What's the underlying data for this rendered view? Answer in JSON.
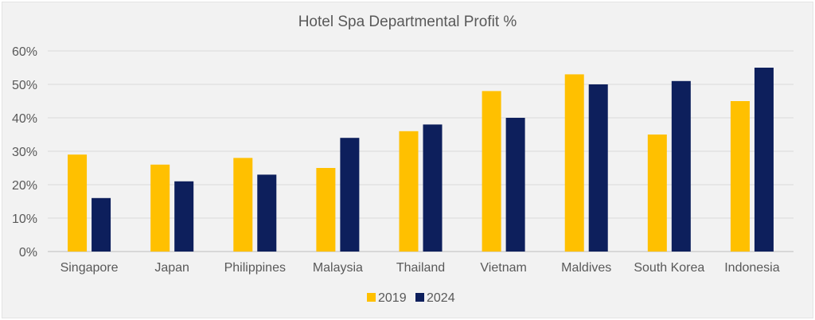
{
  "chart_data": {
    "type": "bar",
    "title": "Hotel Spa Departmental Profit %",
    "xlabel": "",
    "ylabel": "",
    "categories": [
      "Singapore",
      "Japan",
      "Philippines",
      "Malaysia",
      "Thailand",
      "Vietnam",
      "Maldives",
      "South Korea",
      "Indonesia"
    ],
    "series": [
      {
        "name": "2019",
        "color": "#ffc000",
        "values": [
          29,
          26,
          28,
          25,
          36,
          48,
          53,
          35,
          45
        ]
      },
      {
        "name": "2024",
        "color": "#0d1f5c",
        "values": [
          16,
          21,
          23,
          34,
          38,
          40,
          50,
          51,
          55
        ]
      }
    ],
    "ylim": [
      0,
      60
    ],
    "yticks": [
      "0%",
      "10%",
      "20%",
      "30%",
      "40%",
      "50%",
      "60%"
    ],
    "grid": true,
    "legend_position": "bottom"
  }
}
